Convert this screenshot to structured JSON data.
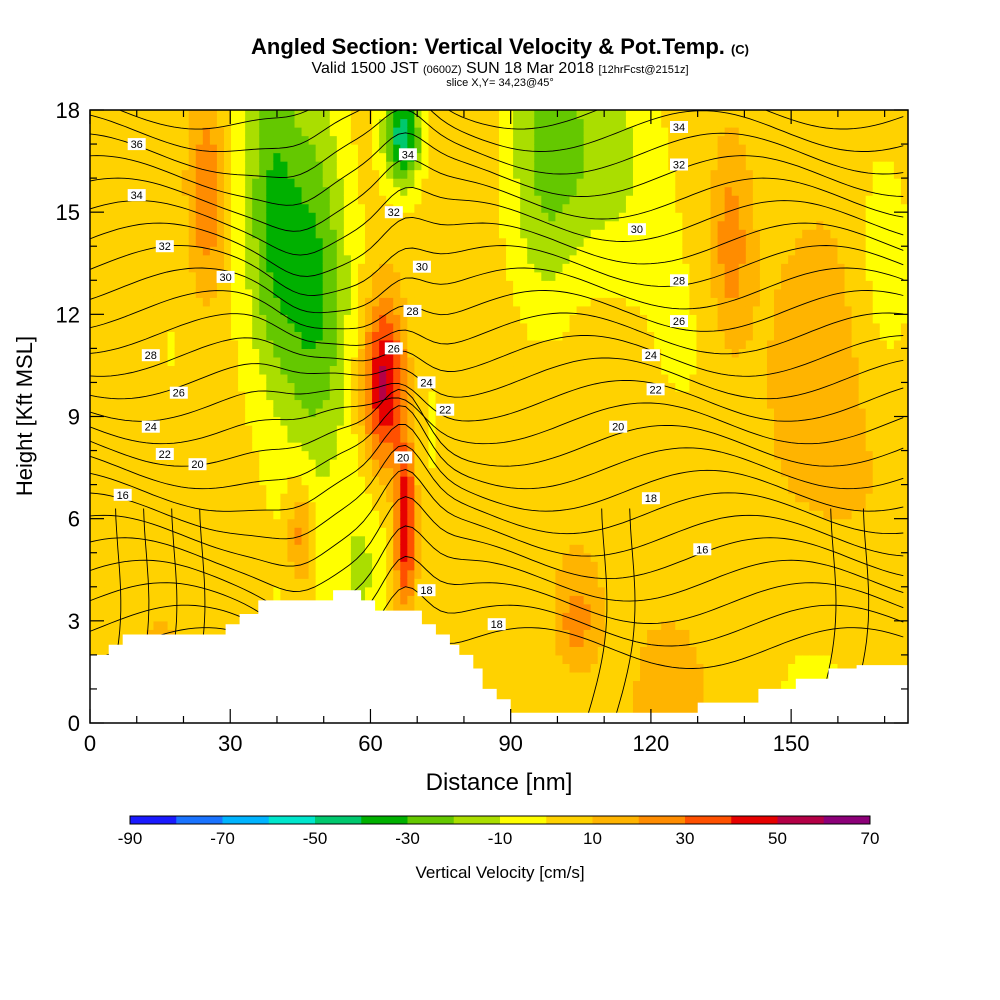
{
  "chart_data": {
    "type": "heatmap",
    "title": "Angled Section: Vertical Velocity & Pot.Temp.",
    "title_unit": "(C)",
    "subtitle_main_a": "Valid 1500 JST",
    "subtitle_small_a": "(0600Z)",
    "subtitle_main_b": "SUN 18 Mar 2018",
    "subtitle_small_b": "[12hrFcst@2151z]",
    "slice_label": "slice X,Y= 34,23@45°",
    "xlabel": "Distance [nm]",
    "ylabel": "Height [Kft MSL]",
    "xlim": [
      0,
      175
    ],
    "ylim": [
      0,
      18
    ],
    "x_ticks": [
      0,
      30,
      60,
      90,
      120,
      150
    ],
    "y_ticks": [
      0,
      3,
      6,
      9,
      12,
      15,
      18
    ],
    "terrain": [
      [
        0,
        2
      ],
      [
        4,
        2
      ],
      [
        4,
        2.3
      ],
      [
        7,
        2.3
      ],
      [
        7,
        2.6
      ],
      [
        29,
        2.6
      ],
      [
        29,
        2.9
      ],
      [
        32,
        2.9
      ],
      [
        32,
        3.2
      ],
      [
        36,
        3.2
      ],
      [
        36,
        3.6
      ],
      [
        52,
        3.6
      ],
      [
        52,
        3.9
      ],
      [
        58,
        3.9
      ],
      [
        58,
        3.6
      ],
      [
        61,
        3.6
      ],
      [
        61,
        3.3
      ],
      [
        71,
        3.3
      ],
      [
        71,
        2.9
      ],
      [
        74,
        2.9
      ],
      [
        74,
        2.6
      ],
      [
        77,
        2.6
      ],
      [
        77,
        2.3
      ],
      [
        79,
        2.3
      ],
      [
        79,
        2.0
      ],
      [
        82,
        2.0
      ],
      [
        82,
        1.6
      ],
      [
        84,
        1.6
      ],
      [
        84,
        1.0
      ],
      [
        87,
        1.0
      ],
      [
        87,
        0.7
      ],
      [
        90,
        0.7
      ],
      [
        90,
        0.3
      ],
      [
        130,
        0.3
      ],
      [
        130,
        0.6
      ],
      [
        143,
        0.6
      ],
      [
        143,
        1.0
      ],
      [
        151,
        1.0
      ],
      [
        151,
        1.3
      ],
      [
        158,
        1.3
      ],
      [
        158,
        1.6
      ],
      [
        164,
        1.6
      ],
      [
        164,
        1.7
      ],
      [
        175,
        1.7
      ]
    ],
    "velocity_features": [
      {
        "x": 48,
        "y": 12.5,
        "sx": 5,
        "sy": 3.6,
        "value": -35
      },
      {
        "x": 39,
        "y": 14.5,
        "sx": 4,
        "sy": 3.5,
        "value": -28
      },
      {
        "x": 67,
        "y": 17.3,
        "sx": 3,
        "sy": 1.1,
        "value": -55
      },
      {
        "x": 97,
        "y": 15.5,
        "sx": 6,
        "sy": 3.8,
        "value": -22
      },
      {
        "x": 110,
        "y": 16.5,
        "sx": 8,
        "sy": 2.3,
        "value": -15
      },
      {
        "x": 170,
        "y": 13.5,
        "sx": 5,
        "sy": 3,
        "value": -15
      },
      {
        "x": 58,
        "y": 4.5,
        "sx": 3,
        "sy": 1.5,
        "value": -12
      },
      {
        "x": 63,
        "y": 10,
        "sx": 3.2,
        "sy": 1.8,
        "value": 55
      },
      {
        "x": 67.5,
        "y": 5.8,
        "sx": 1.6,
        "sy": 1.7,
        "value": 50
      },
      {
        "x": 25,
        "y": 15.5,
        "sx": 3,
        "sy": 2.2,
        "value": 28
      },
      {
        "x": 137,
        "y": 14,
        "sx": 3,
        "sy": 2,
        "value": 22
      },
      {
        "x": 45,
        "y": 5.5,
        "sx": 2,
        "sy": 1.2,
        "value": 25
      },
      {
        "x": 104,
        "y": 3,
        "sx": 3,
        "sy": 1,
        "value": 20
      },
      {
        "x": 148,
        "y": 8,
        "sx": 25,
        "sy": 6,
        "value": 8
      }
    ],
    "contour_labels": [
      {
        "x": 10,
        "y": 17.0,
        "text": "36"
      },
      {
        "x": 10,
        "y": 15.5,
        "text": "34"
      },
      {
        "x": 16,
        "y": 14.0,
        "text": "32"
      },
      {
        "x": 29,
        "y": 13.1,
        "text": "30"
      },
      {
        "x": 13,
        "y": 10.8,
        "text": "28"
      },
      {
        "x": 19,
        "y": 9.7,
        "text": "26"
      },
      {
        "x": 13,
        "y": 8.7,
        "text": "24"
      },
      {
        "x": 16,
        "y": 7.9,
        "text": "22"
      },
      {
        "x": 23,
        "y": 7.6,
        "text": "20"
      },
      {
        "x": 7,
        "y": 6.7,
        "text": "16"
      },
      {
        "x": 68,
        "y": 16.7,
        "text": "34"
      },
      {
        "x": 65,
        "y": 15.0,
        "text": "32"
      },
      {
        "x": 71,
        "y": 13.4,
        "text": "30"
      },
      {
        "x": 69,
        "y": 12.1,
        "text": "28"
      },
      {
        "x": 65,
        "y": 11.0,
        "text": "26"
      },
      {
        "x": 72,
        "y": 10.0,
        "text": "24"
      },
      {
        "x": 76,
        "y": 9.2,
        "text": "22"
      },
      {
        "x": 67,
        "y": 7.8,
        "text": "20"
      },
      {
        "x": 72,
        "y": 3.9,
        "text": "18"
      },
      {
        "x": 87,
        "y": 2.9,
        "text": "18"
      },
      {
        "x": 126,
        "y": 17.5,
        "text": "34"
      },
      {
        "x": 126,
        "y": 16.4,
        "text": "32"
      },
      {
        "x": 117,
        "y": 14.5,
        "text": "30"
      },
      {
        "x": 126,
        "y": 13.0,
        "text": "28"
      },
      {
        "x": 126,
        "y": 11.8,
        "text": "26"
      },
      {
        "x": 120,
        "y": 10.8,
        "text": "24"
      },
      {
        "x": 121,
        "y": 9.8,
        "text": "22"
      },
      {
        "x": 113,
        "y": 8.7,
        "text": "20"
      },
      {
        "x": 120,
        "y": 6.6,
        "text": "18"
      },
      {
        "x": 131,
        "y": 5.1,
        "text": "16"
      }
    ],
    "colorbar": {
      "title": "Vertical Velocity [cm/s]",
      "min": -90,
      "max": 70,
      "step": 10,
      "tick_labels": [
        "-90",
        "-70",
        "-50",
        "-30",
        "-10",
        "10",
        "30",
        "50",
        "70"
      ],
      "colors": [
        "#1a1aff",
        "#1a73ff",
        "#00b4ff",
        "#00e6cc",
        "#00c86e",
        "#00b000",
        "#64c800",
        "#aade00",
        "#ffff00",
        "#ffd200",
        "#ffb400",
        "#ff8c00",
        "#ff5000",
        "#e60000",
        "#b40046",
        "#8c0078"
      ]
    }
  }
}
